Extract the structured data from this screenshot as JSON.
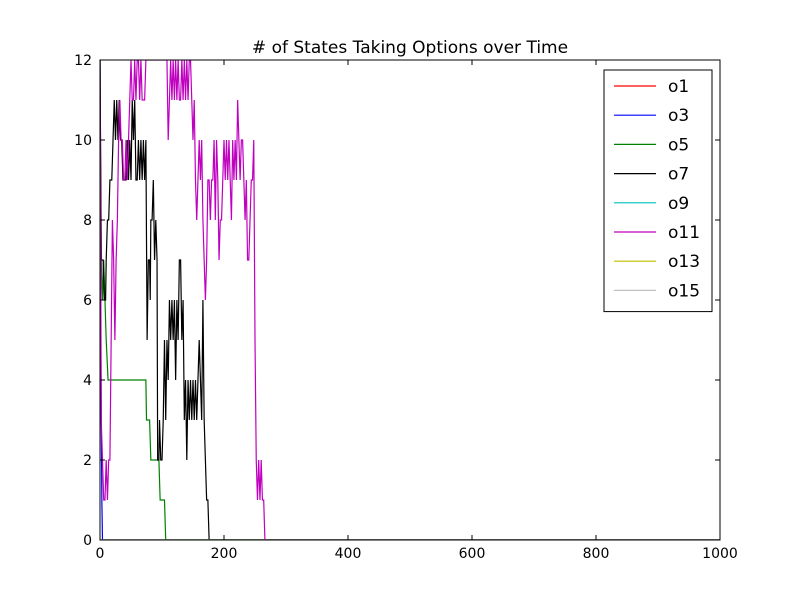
{
  "chart_data": {
    "type": "line",
    "title": "# of States Taking Options over Time",
    "xlabel": "",
    "ylabel": "",
    "xlim": [
      0,
      1000
    ],
    "ylim": [
      0,
      12
    ],
    "xticks": [
      0,
      200,
      400,
      600,
      800,
      1000
    ],
    "yticks": [
      0,
      2,
      4,
      6,
      8,
      10,
      12
    ],
    "grid": false,
    "legend_position": "top-right",
    "series": [
      {
        "name": "o1",
        "color": "#ff0000",
        "points": [
          [
            0,
            0
          ],
          [
            1000,
            0
          ]
        ]
      },
      {
        "name": "o3",
        "color": "#0000ff",
        "points": [
          [
            0,
            12
          ],
          [
            1,
            6
          ],
          [
            2,
            3
          ],
          [
            3,
            1
          ],
          [
            4,
            0
          ],
          [
            1000,
            0
          ]
        ]
      },
      {
        "name": "o5",
        "color": "#008000",
        "points": [
          [
            0,
            12
          ],
          [
            2,
            7
          ],
          [
            4,
            6
          ],
          [
            6,
            7
          ],
          [
            8,
            6
          ],
          [
            10,
            5
          ],
          [
            13,
            4
          ],
          [
            74,
            4
          ],
          [
            75,
            3
          ],
          [
            80,
            3
          ],
          [
            82,
            2
          ],
          [
            95,
            2
          ],
          [
            97,
            1
          ],
          [
            104,
            1
          ],
          [
            106,
            0
          ],
          [
            1000,
            0
          ]
        ]
      },
      {
        "name": "o7",
        "color": "#000000",
        "points": [
          [
            0,
            12
          ],
          [
            2,
            7
          ],
          [
            5,
            7
          ],
          [
            7,
            6
          ],
          [
            9,
            6
          ],
          [
            10,
            7
          ],
          [
            12,
            8
          ],
          [
            14,
            8
          ],
          [
            16,
            9
          ],
          [
            19,
            9
          ],
          [
            21,
            10
          ],
          [
            23,
            11
          ],
          [
            25,
            10
          ],
          [
            27,
            11
          ],
          [
            29,
            10
          ],
          [
            31,
            11
          ],
          [
            33,
            10
          ],
          [
            35,
            10
          ],
          [
            37,
            9
          ],
          [
            40,
            9
          ],
          [
            42,
            9
          ],
          [
            44,
            10
          ],
          [
            46,
            9
          ],
          [
            48,
            10
          ],
          [
            50,
            9
          ],
          [
            52,
            11
          ],
          [
            54,
            10
          ],
          [
            56,
            11
          ],
          [
            58,
            9
          ],
          [
            60,
            9
          ],
          [
            62,
            10
          ],
          [
            64,
            9
          ],
          [
            66,
            10
          ],
          [
            68,
            9
          ],
          [
            70,
            10
          ],
          [
            72,
            9
          ],
          [
            74,
            10
          ],
          [
            76,
            5
          ],
          [
            77,
            6
          ],
          [
            78,
            7
          ],
          [
            80,
            7
          ],
          [
            81,
            6
          ],
          [
            82,
            8
          ],
          [
            84,
            8
          ],
          [
            86,
            9
          ],
          [
            88,
            7
          ],
          [
            90,
            8
          ],
          [
            92,
            7
          ],
          [
            93,
            2
          ],
          [
            95,
            2
          ],
          [
            96,
            3
          ],
          [
            98,
            2
          ],
          [
            100,
            2
          ],
          [
            102,
            3
          ],
          [
            104,
            5
          ],
          [
            106,
            3
          ],
          [
            108,
            5
          ],
          [
            110,
            4
          ],
          [
            112,
            6
          ],
          [
            114,
            5
          ],
          [
            116,
            6
          ],
          [
            118,
            5
          ],
          [
            120,
            6
          ],
          [
            122,
            4
          ],
          [
            124,
            6
          ],
          [
            126,
            5
          ],
          [
            128,
            7
          ],
          [
            130,
            7
          ],
          [
            132,
            5
          ],
          [
            134,
            6
          ],
          [
            136,
            3
          ],
          [
            138,
            4
          ],
          [
            140,
            2
          ],
          [
            142,
            4
          ],
          [
            144,
            3
          ],
          [
            146,
            4
          ],
          [
            148,
            3
          ],
          [
            150,
            4
          ],
          [
            152,
            3
          ],
          [
            154,
            4
          ],
          [
            156,
            3
          ],
          [
            158,
            4
          ],
          [
            160,
            5
          ],
          [
            162,
            4
          ],
          [
            164,
            3
          ],
          [
            166,
            6
          ],
          [
            168,
            3
          ],
          [
            170,
            2
          ],
          [
            172,
            1
          ],
          [
            174,
            1
          ],
          [
            176,
            0
          ],
          [
            1000,
            0
          ]
        ]
      },
      {
        "name": "o9",
        "color": "#00bfbf",
        "points": [
          [
            0,
            0
          ],
          [
            1000,
            0
          ]
        ]
      },
      {
        "name": "o11",
        "color": "#bf00bf",
        "points": [
          [
            0,
            12
          ],
          [
            2,
            3
          ],
          [
            4,
            2
          ],
          [
            6,
            1
          ],
          [
            8,
            1
          ],
          [
            10,
            2
          ],
          [
            12,
            1
          ],
          [
            14,
            2
          ],
          [
            16,
            2
          ],
          [
            18,
            5
          ],
          [
            20,
            8
          ],
          [
            22,
            7
          ],
          [
            24,
            5
          ],
          [
            26,
            7
          ],
          [
            28,
            8
          ],
          [
            30,
            10
          ],
          [
            32,
            11
          ],
          [
            34,
            10
          ],
          [
            36,
            10
          ],
          [
            38,
            9
          ],
          [
            40,
            9
          ],
          [
            42,
            10
          ],
          [
            44,
            9
          ],
          [
            46,
            10
          ],
          [
            48,
            11
          ],
          [
            50,
            12
          ],
          [
            52,
            11
          ],
          [
            54,
            11
          ],
          [
            56,
            12
          ],
          [
            58,
            11
          ],
          [
            60,
            12
          ],
          [
            62,
            12
          ],
          [
            64,
            11
          ],
          [
            66,
            12
          ],
          [
            68,
            11
          ],
          [
            70,
            11
          ],
          [
            72,
            11
          ],
          [
            74,
            12
          ],
          [
            100,
            12
          ],
          [
            108,
            12
          ],
          [
            110,
            10
          ],
          [
            112,
            11
          ],
          [
            114,
            12
          ],
          [
            116,
            11
          ],
          [
            118,
            12
          ],
          [
            120,
            11
          ],
          [
            122,
            12
          ],
          [
            124,
            11
          ],
          [
            126,
            12
          ],
          [
            128,
            11
          ],
          [
            130,
            11
          ],
          [
            132,
            12
          ],
          [
            134,
            11
          ],
          [
            136,
            12
          ],
          [
            138,
            11
          ],
          [
            140,
            12
          ],
          [
            142,
            11
          ],
          [
            144,
            12
          ],
          [
            146,
            12
          ],
          [
            148,
            11
          ],
          [
            150,
            10
          ],
          [
            152,
            11
          ],
          [
            154,
            9
          ],
          [
            156,
            8
          ],
          [
            158,
            9
          ],
          [
            160,
            10
          ],
          [
            162,
            9
          ],
          [
            164,
            10
          ],
          [
            166,
            8
          ],
          [
            168,
            7
          ],
          [
            170,
            6
          ],
          [
            172,
            7
          ],
          [
            174,
            9
          ],
          [
            176,
            9
          ],
          [
            178,
            8
          ],
          [
            180,
            9
          ],
          [
            182,
            9
          ],
          [
            184,
            10
          ],
          [
            186,
            8
          ],
          [
            188,
            10
          ],
          [
            190,
            9
          ],
          [
            192,
            7
          ],
          [
            194,
            8
          ],
          [
            196,
            8
          ],
          [
            198,
            9
          ],
          [
            200,
            10
          ],
          [
            202,
            9
          ],
          [
            204,
            10
          ],
          [
            206,
            9
          ],
          [
            208,
            10
          ],
          [
            210,
            9
          ],
          [
            212,
            8
          ],
          [
            214,
            10
          ],
          [
            216,
            9
          ],
          [
            218,
            10
          ],
          [
            220,
            9
          ],
          [
            222,
            11
          ],
          [
            224,
            10
          ],
          [
            226,
            9
          ],
          [
            228,
            10
          ],
          [
            230,
            10
          ],
          [
            232,
            9
          ],
          [
            234,
            8
          ],
          [
            236,
            9
          ],
          [
            238,
            7
          ],
          [
            240,
            7
          ],
          [
            242,
            8
          ],
          [
            244,
            9
          ],
          [
            246,
            9
          ],
          [
            248,
            10
          ],
          [
            250,
            5
          ],
          [
            252,
            2
          ],
          [
            254,
            1
          ],
          [
            256,
            2
          ],
          [
            258,
            1
          ],
          [
            260,
            2
          ],
          [
            262,
            1
          ],
          [
            264,
            1
          ],
          [
            266,
            0
          ],
          [
            1000,
            0
          ]
        ]
      },
      {
        "name": "o13",
        "color": "#bfbf00",
        "points": [
          [
            0,
            0
          ],
          [
            1000,
            0
          ]
        ]
      },
      {
        "name": "o15",
        "color": "#c0c0c0",
        "points": [
          [
            0,
            0
          ],
          [
            1000,
            0
          ]
        ]
      }
    ]
  }
}
